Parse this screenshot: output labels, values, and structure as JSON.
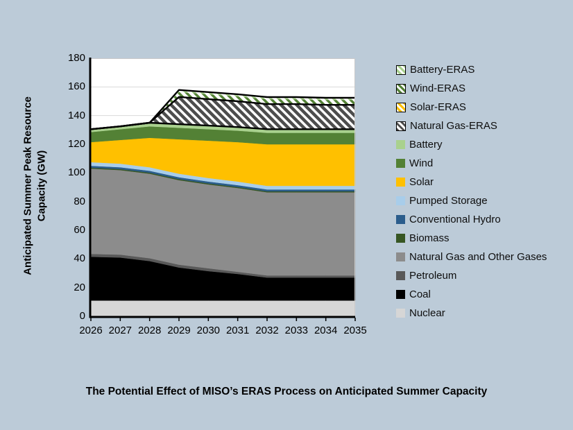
{
  "figure": {
    "background": "#bccbd8",
    "title": "The Potential Effect of MISO’s ERAS Process on Anticipated Summer Capacity"
  },
  "y_axis": {
    "title_line1": "Anticipated Summer Peak Resource",
    "title_line2": "Capacity (GW)",
    "ticks": [
      0,
      20,
      40,
      60,
      80,
      100,
      120,
      140,
      160,
      180
    ]
  },
  "chart_data": {
    "type": "area",
    "stacked": true,
    "title": "The Potential Effect of MISO’s ERAS Process on Anticipated Summer Capacity",
    "ylabel": "Anticipated Summer Peak Resource Capacity (GW)",
    "xlabel": "",
    "ylim": [
      0,
      180
    ],
    "grid": "horizontal, every 20 GW",
    "legend_position": "right",
    "categories": [
      "2026",
      "2027",
      "2028",
      "2029",
      "2030",
      "2031",
      "2032",
      "2033",
      "2034",
      "2035"
    ],
    "series_note": "listed bottom-to-top of stack; values are layer thickness in GW",
    "series": [
      {
        "id": "nuclear",
        "name": "Nuclear",
        "color": "#d6d6d6",
        "hatch": null,
        "values": [
          11,
          11,
          11,
          11,
          11,
          11,
          11,
          11,
          11,
          11
        ]
      },
      {
        "id": "coal",
        "name": "Coal",
        "color": "#000000",
        "hatch": null,
        "values": [
          30.5,
          30,
          27.5,
          23,
          20.5,
          18.5,
          16,
          16,
          16,
          16
        ]
      },
      {
        "id": "petroleum",
        "name": "Petroleum",
        "color": "#595959",
        "hatch": null,
        "values": [
          2,
          2,
          2,
          2,
          2,
          1.5,
          1.5,
          1.5,
          1.5,
          1.5
        ]
      },
      {
        "id": "natural-gas-and-other-gases",
        "name": "Natural Gas and Other Gases",
        "color": "#8c8c8c",
        "hatch": null,
        "values": [
          59.5,
          59,
          59,
          59,
          58.5,
          58.5,
          58,
          58,
          58,
          58
        ]
      },
      {
        "id": "biomass",
        "name": "Biomass",
        "color": "#375623",
        "hatch": null,
        "values": [
          0.7,
          0.7,
          0.7,
          0.7,
          0.7,
          0.7,
          0.7,
          0.7,
          0.7,
          0.7
        ]
      },
      {
        "id": "conventional-hydro",
        "name": "Conventional Hydro",
        "color": "#2b5d8c",
        "hatch": null,
        "values": [
          1.3,
          1.3,
          1.3,
          1.3,
          1.3,
          1.3,
          1.3,
          1.3,
          1.3,
          1.3
        ]
      },
      {
        "id": "pumped-storage",
        "name": "Pumped Storage",
        "color": "#a8cdea",
        "hatch": null,
        "values": [
          2.5,
          2.5,
          2.5,
          2.5,
          2.5,
          2.5,
          2.5,
          2.5,
          2.5,
          2.5
        ]
      },
      {
        "id": "solar",
        "name": "Solar",
        "color": "#ffc000",
        "hatch": null,
        "values": [
          14,
          16.5,
          20.5,
          24,
          26,
          27.5,
          29,
          29,
          29,
          29
        ]
      },
      {
        "id": "wind",
        "name": "Wind",
        "color": "#538135",
        "hatch": null,
        "values": [
          7,
          7.5,
          8,
          8,
          8,
          8,
          8,
          8,
          8,
          8
        ]
      },
      {
        "id": "battery",
        "name": "Battery",
        "color": "#a9d18e",
        "hatch": null,
        "values": [
          2,
          2,
          2.5,
          2.5,
          2.5,
          2.5,
          2.5,
          2.5,
          2.5,
          2.5
        ]
      },
      {
        "id": "natural-gas-eras",
        "name": "Natural Gas-ERAS",
        "color": "#ffffff",
        "hatch": {
          "bg": "#ffffff",
          "stripe": "#4d4d4d"
        },
        "values": [
          0,
          0,
          0,
          19,
          18.5,
          18,
          17.5,
          17.5,
          17,
          17
        ]
      },
      {
        "id": "solar-eras",
        "name": "Solar-ERAS",
        "color": "#ffc000",
        "hatch": {
          "bg": "#ffc000",
          "stripe": "#ffffff"
        },
        "values": [
          0,
          0,
          0,
          0.4,
          0.4,
          0.4,
          0.4,
          0.4,
          0.4,
          0.4
        ]
      },
      {
        "id": "wind-eras",
        "name": "Wind-ERAS",
        "color": "#538135",
        "hatch": {
          "bg": "#538135",
          "stripe": "#ffffff"
        },
        "values": [
          0,
          0,
          0,
          3,
          3,
          3,
          3,
          3,
          3,
          3
        ]
      },
      {
        "id": "battery-eras",
        "name": "Battery-ERAS",
        "color": "#a9d18e",
        "hatch": {
          "bg": "#a9d18e",
          "stripe": "#ffffff"
        },
        "values": [
          0,
          0,
          0,
          1.5,
          1.5,
          1.5,
          1.5,
          1.5,
          1.5,
          1.5
        ]
      }
    ],
    "outlines": {
      "color": "#000000",
      "width": 2.4,
      "after_series": [
        "Battery",
        "Natural Gas-ERAS",
        "Battery-ERAS"
      ],
      "note": "black edge lines: top of non-ERAS stack, top of Natural Gas-ERAS band, top of full stack"
    },
    "plot_style": {
      "background": "#ffffff",
      "gridline_color": "#d9d9d9",
      "frame_light_color": "#c9c9c9",
      "axis_color": "#000000"
    }
  }
}
